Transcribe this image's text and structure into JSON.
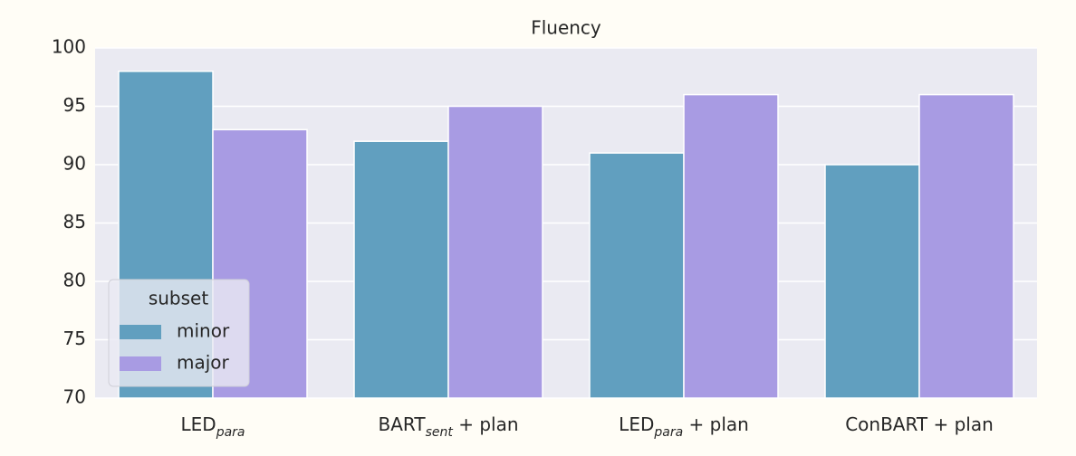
{
  "chart_data": {
    "type": "bar",
    "title": "Fluency",
    "categories": [
      {
        "text": "LED",
        "sub": "para"
      },
      {
        "text": "BART",
        "sub": "sent",
        "suffix": " + plan"
      },
      {
        "text": "LED",
        "sub": "para",
        "suffix": " + plan"
      },
      {
        "text": "ConBART + plan"
      }
    ],
    "series": [
      {
        "name": "minor",
        "color": "#619fbf",
        "values": [
          98,
          92,
          91,
          90
        ]
      },
      {
        "name": "major",
        "color": "#a89be3",
        "values": [
          93,
          95,
          96,
          96
        ]
      }
    ],
    "ylim": [
      70,
      100
    ],
    "yticks": [
      70,
      75,
      80,
      85,
      90,
      95,
      100
    ],
    "grid": true,
    "legend": {
      "title": "subset",
      "position": "lower left"
    }
  }
}
